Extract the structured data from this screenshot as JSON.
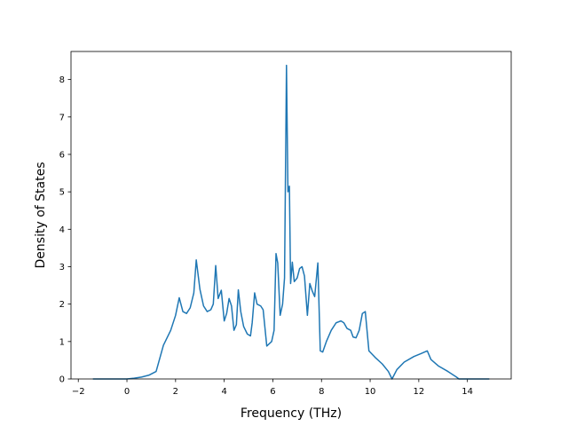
{
  "chart_data": {
    "type": "line",
    "title": "",
    "xlabel": "Frequency (THz)",
    "ylabel": "Density of States",
    "xlim": [
      -2.3,
      15.8
    ],
    "ylim": [
      0,
      8.75
    ],
    "grid": false,
    "legend": "none",
    "color": "#1f77b4",
    "xticks": [
      -2,
      0,
      2,
      4,
      6,
      8,
      10,
      12,
      14
    ],
    "xtick_labels": [
      "−2",
      "0",
      "2",
      "4",
      "6",
      "8",
      "10",
      "12",
      "14"
    ],
    "yticks": [
      0,
      1,
      2,
      3,
      4,
      5,
      6,
      7,
      8
    ],
    "ytick_labels": [
      "0",
      "1",
      "2",
      "3",
      "4",
      "5",
      "6",
      "7",
      "8"
    ],
    "series": [
      {
        "name": "",
        "x": [
          -1.4,
          0.0,
          0.3,
          0.6,
          0.9,
          1.2,
          1.5,
          1.8,
          2.0,
          2.15,
          2.3,
          2.45,
          2.6,
          2.75,
          2.85,
          3.0,
          3.15,
          3.3,
          3.45,
          3.55,
          3.65,
          3.75,
          3.88,
          4.0,
          4.1,
          4.2,
          4.3,
          4.4,
          4.5,
          4.58,
          4.68,
          4.8,
          4.95,
          5.08,
          5.15,
          5.25,
          5.35,
          5.5,
          5.6,
          5.75,
          5.95,
          6.05,
          6.13,
          6.2,
          6.3,
          6.4,
          6.48,
          6.56,
          6.62,
          6.68,
          6.73,
          6.8,
          6.88,
          7.0,
          7.1,
          7.2,
          7.3,
          7.42,
          7.52,
          7.62,
          7.72,
          7.85,
          7.95,
          8.05,
          8.2,
          8.4,
          8.6,
          8.8,
          8.92,
          9.05,
          9.2,
          9.3,
          9.42,
          9.55,
          9.68,
          9.8,
          9.95,
          10.2,
          10.5,
          10.75,
          10.9,
          11.1,
          11.4,
          11.8,
          12.1,
          12.35,
          12.5,
          12.8,
          13.2,
          13.55,
          13.65,
          14.0,
          14.5,
          14.9
        ],
        "values": [
          0,
          0,
          0.02,
          0.05,
          0.1,
          0.2,
          0.9,
          1.3,
          1.7,
          2.17,
          1.8,
          1.75,
          1.9,
          2.3,
          3.18,
          2.4,
          1.95,
          1.8,
          1.85,
          2.0,
          3.03,
          2.15,
          2.37,
          1.55,
          1.75,
          2.15,
          1.95,
          1.3,
          1.45,
          2.38,
          1.8,
          1.4,
          1.2,
          1.15,
          1.5,
          2.3,
          2.0,
          1.95,
          1.85,
          0.88,
          1.0,
          1.3,
          3.35,
          3.1,
          1.7,
          2.0,
          2.7,
          8.38,
          5.0,
          5.15,
          2.55,
          3.12,
          2.6,
          2.7,
          2.95,
          3.0,
          2.75,
          1.7,
          2.55,
          2.35,
          2.2,
          3.1,
          0.75,
          0.72,
          1.0,
          1.3,
          1.5,
          1.55,
          1.5,
          1.35,
          1.3,
          1.12,
          1.1,
          1.3,
          1.75,
          1.8,
          0.75,
          0.58,
          0.4,
          0.2,
          0.0,
          0.25,
          0.45,
          0.6,
          0.68,
          0.75,
          0.52,
          0.35,
          0.2,
          0.05,
          0.0,
          0.0,
          0.0,
          0.0
        ]
      }
    ]
  }
}
